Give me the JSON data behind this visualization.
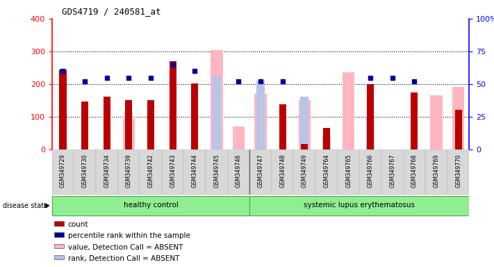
{
  "title": "GDS4719 / 240581_at",
  "samples": [
    "GSM349729",
    "GSM349730",
    "GSM349734",
    "GSM349739",
    "GSM349742",
    "GSM349743",
    "GSM349744",
    "GSM349745",
    "GSM349746",
    "GSM349747",
    "GSM349748",
    "GSM349749",
    "GSM349764",
    "GSM349765",
    "GSM349766",
    "GSM349767",
    "GSM349768",
    "GSM349769",
    "GSM349770"
  ],
  "count": [
    245,
    147,
    162,
    152,
    152,
    270,
    201,
    null,
    null,
    null,
    138,
    17,
    67,
    null,
    200,
    null,
    175,
    null,
    122
  ],
  "percentile_rank": [
    60,
    52,
    55,
    55,
    55,
    65,
    60,
    null,
    52,
    52,
    52,
    null,
    null,
    null,
    55,
    55,
    52,
    null,
    null
  ],
  "value_absent": [
    null,
    null,
    null,
    93,
    null,
    null,
    null,
    305,
    70,
    170,
    null,
    150,
    null,
    235,
    null,
    null,
    null,
    165,
    192
  ],
  "rank_absent": [
    null,
    null,
    null,
    115,
    null,
    null,
    null,
    225,
    null,
    210,
    null,
    162,
    40,
    null,
    98,
    null,
    null,
    null,
    null
  ],
  "hc_count": 9,
  "ylim_left": [
    0,
    400
  ],
  "ylim_right": [
    0,
    100
  ],
  "count_color": "#BB0000",
  "percentile_color": "#000099",
  "value_absent_color": "#FFB6C1",
  "rank_absent_color": "#B8C4E8",
  "green_color": "#90EE90",
  "green_edge": "#44AA44"
}
